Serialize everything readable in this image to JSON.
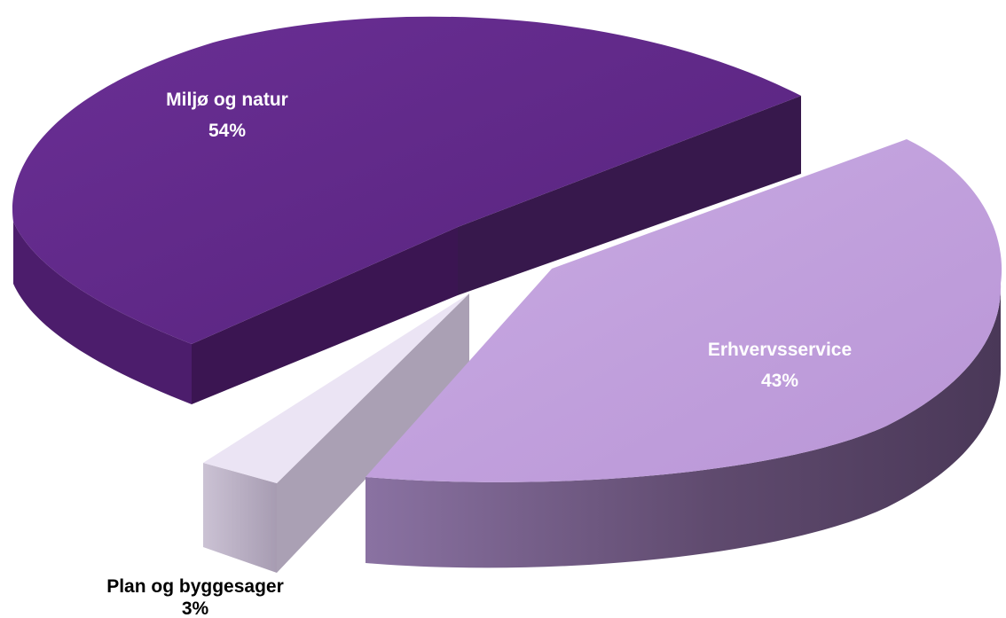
{
  "chart_data": {
    "type": "pie",
    "title": "",
    "categories": [
      "Miljø og natur",
      "Erhvervsservice",
      "Plan og byggesager"
    ],
    "values": [
      54,
      43,
      3
    ],
    "value_labels": [
      "54%",
      "43%",
      "3%"
    ],
    "unit": "%",
    "legend": "none",
    "style": "3d-exploded",
    "colors": {
      "miljo_top": "#5e2886",
      "miljo_side": "#3c1654",
      "erhverv_top": "#c2a2de",
      "erhverv_side": "#5a4468",
      "plan_top": "#ebe4f4",
      "plan_side": "#b8adc2"
    }
  }
}
